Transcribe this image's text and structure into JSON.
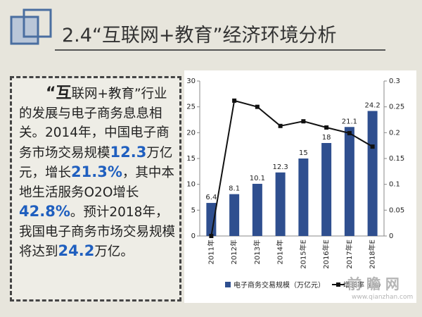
{
  "header": {
    "title": "2.4“互联网+教育”经济环境分析"
  },
  "text": [
    {
      "text": "“互",
      "style": "lead"
    },
    {
      "text": "联网+教育”行业的发展与电子商务息息相关。2014年，中国电子商务市场交易规模",
      "style": "plain"
    },
    {
      "text": "12.3",
      "style": "highlight"
    },
    {
      "text": "万亿元，增长",
      "style": "plain"
    },
    {
      "text": "21.3%",
      "style": "highlight"
    },
    {
      "text": "，其中本地生活服务O2O增长",
      "style": "plain"
    },
    {
      "text": "42.8%",
      "style": "highlight"
    },
    {
      "text": "。预计2018年，我国电子商务市场交易规模将达到",
      "style": "plain"
    },
    {
      "text": "24.2",
      "style": "highlight"
    },
    {
      "text": "万亿。",
      "style": "plain"
    }
  ],
  "chart_data": {
    "type": "bar",
    "categories": [
      "2011年",
      "2012年",
      "2013年",
      "2014年",
      "2015年E",
      "2016年E",
      "2017年E",
      "2018年E"
    ],
    "series": [
      {
        "name": "电子商务交易规模（万亿元）",
        "type": "bar",
        "color": "#2f4f8f",
        "values": [
          6.4,
          8.1,
          10.1,
          12.3,
          15,
          18,
          21.1,
          24.2
        ]
      },
      {
        "name": "增长率（%）",
        "type": "line",
        "axis": "y2",
        "color": "#111111",
        "values": [
          0,
          0.262,
          0.25,
          0.213,
          0.222,
          0.21,
          0.199,
          0.173
        ]
      }
    ],
    "ylim": [
      0,
      30
    ],
    "yticks": [
      0,
      5,
      10,
      15,
      20,
      25,
      30
    ],
    "y2lim": [
      0,
      0.3
    ],
    "y2ticks": [
      0,
      0.05,
      0.1,
      0.15,
      0.2,
      0.25,
      0.3
    ],
    "legend": "bottom"
  },
  "watermark": {
    "brand": "前 瞻 网",
    "url": "www.qianzhan.com"
  }
}
